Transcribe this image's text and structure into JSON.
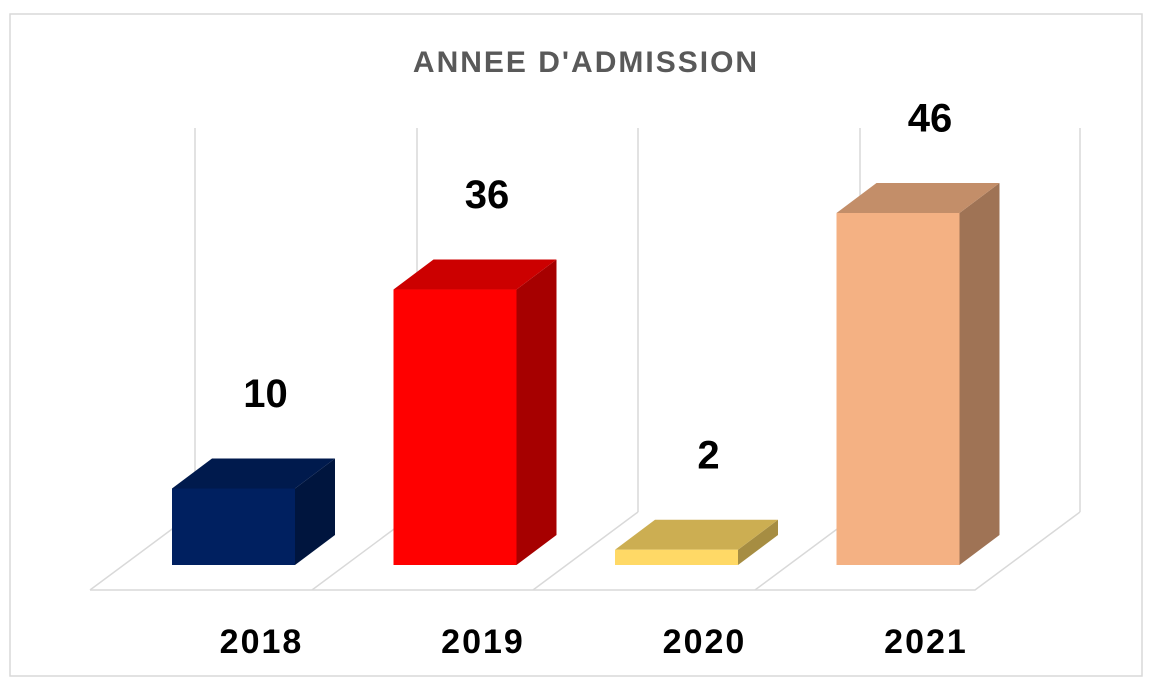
{
  "chart_data": {
    "type": "bar3d",
    "title": "ANNEE D'ADMISSION",
    "categories": [
      "2018",
      "2019",
      "2020",
      "2021"
    ],
    "values": [
      10,
      36,
      2,
      46
    ],
    "colors": [
      "#002060",
      "#ff0000",
      "#ffd966",
      "#f4b183"
    ]
  }
}
